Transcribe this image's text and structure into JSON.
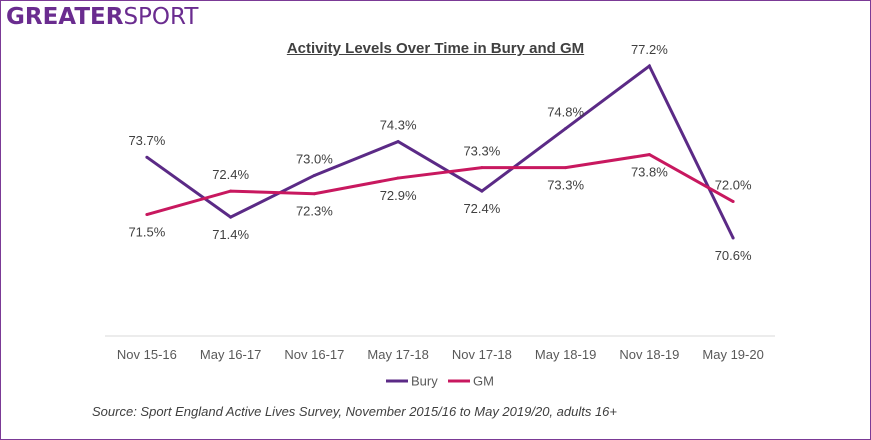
{
  "logo": {
    "part1": "GREATER",
    "part2": "SPORT"
  },
  "source": "Source: Sport England Active Lives Survey, November 2015/16 to May 2019/20, adults 16+",
  "colors": {
    "bury": "#5b2a86",
    "gm": "#c8185f",
    "frame": "#7b3a96",
    "axis": "#d9d9d9"
  },
  "chart_data": {
    "type": "line",
    "title": "Activity Levels Over Time in Bury and GM",
    "xlabel": "",
    "ylabel": "",
    "categories": [
      "Nov 15-16",
      "May 16-17",
      "Nov 16-17",
      "May 17-18",
      "Nov 17-18",
      "May 18-19",
      "Nov 18-19",
      "May 19-20"
    ],
    "series": [
      {
        "name": "Bury",
        "values": [
          73.7,
          71.4,
          73.0,
          74.3,
          72.4,
          74.8,
          77.2,
          70.6
        ],
        "labels": [
          "73.7%",
          "71.4%",
          "73.0%",
          "74.3%",
          "72.4%",
          "74.8%",
          "77.2%",
          "70.6%"
        ]
      },
      {
        "name": "GM",
        "values": [
          71.5,
          72.4,
          72.3,
          72.9,
          73.3,
          73.3,
          73.8,
          72.0
        ],
        "labels": [
          "71.5%",
          "72.4%",
          "72.3%",
          "72.9%",
          "73.3%",
          "73.3%",
          "73.8%",
          "72.0%"
        ]
      }
    ],
    "ylim": [
      60,
      78
    ],
    "grid": false,
    "legend_position": "bottom"
  }
}
